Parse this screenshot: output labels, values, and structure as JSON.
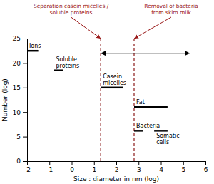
{
  "chart_data": {
    "type": "range",
    "orientation": "horizontal",
    "xlabel": "Size : diameter in nm (log)",
    "ylabel": "Number (log)",
    "xlim": [
      -2,
      6
    ],
    "ylim": [
      0,
      25
    ],
    "xticks": [
      -2,
      -1,
      0,
      1,
      2,
      3,
      4,
      5,
      6
    ],
    "yticks": [
      0,
      5,
      10,
      15,
      20,
      25
    ],
    "color": "#000000",
    "bars": [
      {
        "label": "Ions",
        "x_start": -2.0,
        "x_end": -1.5,
        "y": 22.5
      },
      {
        "label": "Soluble\nproteins",
        "x_start": -0.8,
        "x_end": -0.4,
        "y": 18.5
      },
      {
        "label": "Casein\nmicelles",
        "x_start": 1.3,
        "x_end": 2.3,
        "y": 15.0
      },
      {
        "label": "Fat",
        "x_start": 2.8,
        "x_end": 4.3,
        "y": 11.0
      },
      {
        "label": "Bacteria",
        "x_start": 2.8,
        "x_end": 3.2,
        "y": 6.2
      },
      {
        "label": "Somatic\ncells",
        "x_start": 3.7,
        "x_end": 4.3,
        "y": 6.2
      }
    ],
    "vlines": {
      "x": [
        1.3,
        2.8
      ],
      "color": "#8B1A1A",
      "line_style": "dashed"
    },
    "arrow": {
      "x_start": 1.3,
      "x_end": 5.3,
      "y": 22.0
    },
    "annotations": [
      {
        "text": "Separation casein micelles /\nsoluble proteins",
        "x": 1.3,
        "color": "#9B1B1B"
      },
      {
        "text": "Removal of bacteria\nfrom skim milk",
        "x": 2.8,
        "color": "#9B1B1B"
      }
    ]
  }
}
